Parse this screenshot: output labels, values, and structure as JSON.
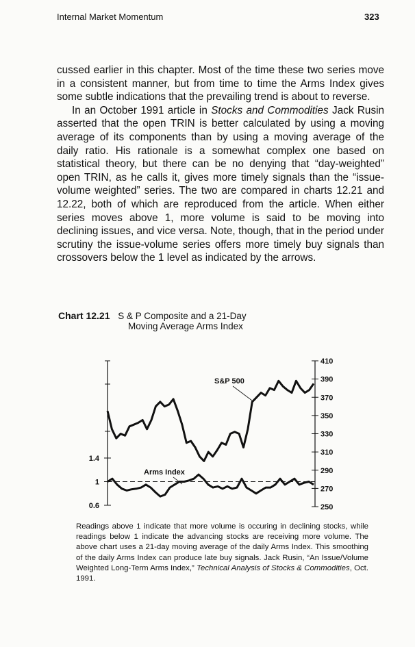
{
  "header": {
    "title": "Internal Market Momentum",
    "page_number": "323"
  },
  "body": {
    "p1": "cussed earlier in this chapter. Most of the time these two series move in a consistent manner, but from time to time the Arms Index gives some subtle indications that the prevailing trend is about to reverse.",
    "p2_a": "In an October 1991 article in ",
    "p2_em": "Stocks and Commodities",
    "p2_b": " Jack Rusin asserted that the open TRIN is better calculated by using a moving average of its components than by using a moving average of the daily ratio. His rationale is a somewhat complex one based on statistical theory, but there can be no denying that “day-weighted” open TRIN, as he calls it, gives more timely signals than the “issue-volume weighted” series. The two are compared in charts 12.21 and 12.22, both of which are reproduced from the article. When either series moves above 1, more volume is said to be moving into declining issues, and vice versa. Note, though, that in the period under scrutiny the issue-volume series offers more timely buy signals than crossovers below the 1 level as indicated by the arrows."
  },
  "caption": {
    "number": "Chart 12.21",
    "line1": "S & P Composite and a 21-Day",
    "line2": "Moving Average Arms Index"
  },
  "chart_data": {
    "type": "line",
    "series": [
      {
        "name": "S&P 500",
        "axis": "right",
        "values": [
          355,
          335,
          325,
          330,
          328,
          338,
          340,
          342,
          345,
          335,
          345,
          360,
          365,
          360,
          362,
          368,
          355,
          340,
          320,
          322,
          315,
          305,
          300,
          310,
          305,
          312,
          320,
          318,
          330,
          332,
          330,
          315,
          335,
          365,
          370,
          375,
          372,
          380,
          378,
          388,
          382,
          378,
          375,
          388,
          380,
          375,
          378,
          385
        ]
      },
      {
        "name": "Arms Index",
        "axis": "left",
        "values": [
          1.0,
          1.05,
          0.95,
          0.88,
          0.85,
          0.87,
          0.88,
          0.9,
          0.95,
          0.9,
          0.82,
          0.75,
          0.78,
          0.9,
          0.95,
          1.0,
          1.0,
          1.02,
          1.05,
          1.12,
          1.05,
          0.95,
          0.9,
          0.92,
          0.88,
          0.92,
          0.88,
          0.9,
          1.05,
          0.9,
          0.85,
          0.8,
          0.85,
          0.9,
          0.9,
          0.95,
          1.05,
          0.95,
          1.0,
          1.05,
          0.95,
          0.98,
          1.0,
          0.95
        ]
      }
    ],
    "right_axis": {
      "ticks": [
        "410",
        "390",
        "370",
        "350",
        "330",
        "310",
        "290",
        "270",
        "250"
      ],
      "range": [
        250,
        410
      ]
    },
    "left_axis": {
      "ticks": [
        "1.4",
        "1",
        "0.6"
      ],
      "range": [
        0.6,
        1.4
      ]
    },
    "reference_line": 1,
    "labels": {
      "sp": "S&P 500",
      "arms": "Arms Index"
    }
  },
  "note": {
    "text": "Readings above 1 indicate that more volume is occuring in declining stocks, while readings below 1 indicate the advancing stocks are receiving more volume. The above chart uses a 21-day moving average of the daily Arms Index. This smoothing of the daily Arms Index can produce late buy signals. Jack Rusin, “An Issue/Volume Weighted Long-Term Arms Index,” ",
    "em": "Technical Analysis of Stocks & Commodities",
    "tail": ", Oct. 1991."
  }
}
